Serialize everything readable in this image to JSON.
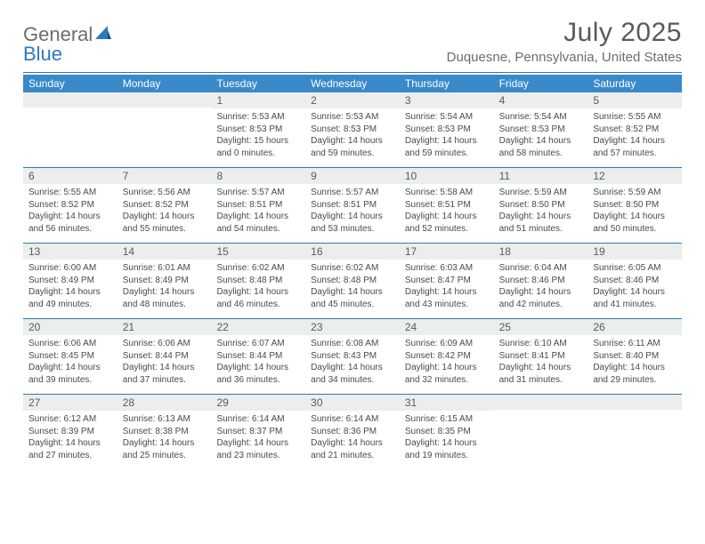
{
  "brand": {
    "part1": "General",
    "part2": "Blue"
  },
  "title": "July 2025",
  "location": "Duquesne, Pennsylvania, United States",
  "colors": {
    "headerBar": "#3a89c9",
    "rule": "#2f78bd",
    "dayNumBg": "#eceded",
    "textMuted": "#6d6d6d"
  },
  "dow": [
    "Sunday",
    "Monday",
    "Tuesday",
    "Wednesday",
    "Thursday",
    "Friday",
    "Saturday"
  ],
  "weeks": [
    [
      null,
      null,
      {
        "n": "1",
        "sr": "5:53 AM",
        "ss": "8:53 PM",
        "dl": "15 hours and 0 minutes."
      },
      {
        "n": "2",
        "sr": "5:53 AM",
        "ss": "8:53 PM",
        "dl": "14 hours and 59 minutes."
      },
      {
        "n": "3",
        "sr": "5:54 AM",
        "ss": "8:53 PM",
        "dl": "14 hours and 59 minutes."
      },
      {
        "n": "4",
        "sr": "5:54 AM",
        "ss": "8:53 PM",
        "dl": "14 hours and 58 minutes."
      },
      {
        "n": "5",
        "sr": "5:55 AM",
        "ss": "8:52 PM",
        "dl": "14 hours and 57 minutes."
      }
    ],
    [
      {
        "n": "6",
        "sr": "5:55 AM",
        "ss": "8:52 PM",
        "dl": "14 hours and 56 minutes."
      },
      {
        "n": "7",
        "sr": "5:56 AM",
        "ss": "8:52 PM",
        "dl": "14 hours and 55 minutes."
      },
      {
        "n": "8",
        "sr": "5:57 AM",
        "ss": "8:51 PM",
        "dl": "14 hours and 54 minutes."
      },
      {
        "n": "9",
        "sr": "5:57 AM",
        "ss": "8:51 PM",
        "dl": "14 hours and 53 minutes."
      },
      {
        "n": "10",
        "sr": "5:58 AM",
        "ss": "8:51 PM",
        "dl": "14 hours and 52 minutes."
      },
      {
        "n": "11",
        "sr": "5:59 AM",
        "ss": "8:50 PM",
        "dl": "14 hours and 51 minutes."
      },
      {
        "n": "12",
        "sr": "5:59 AM",
        "ss": "8:50 PM",
        "dl": "14 hours and 50 minutes."
      }
    ],
    [
      {
        "n": "13",
        "sr": "6:00 AM",
        "ss": "8:49 PM",
        "dl": "14 hours and 49 minutes."
      },
      {
        "n": "14",
        "sr": "6:01 AM",
        "ss": "8:49 PM",
        "dl": "14 hours and 48 minutes."
      },
      {
        "n": "15",
        "sr": "6:02 AM",
        "ss": "8:48 PM",
        "dl": "14 hours and 46 minutes."
      },
      {
        "n": "16",
        "sr": "6:02 AM",
        "ss": "8:48 PM",
        "dl": "14 hours and 45 minutes."
      },
      {
        "n": "17",
        "sr": "6:03 AM",
        "ss": "8:47 PM",
        "dl": "14 hours and 43 minutes."
      },
      {
        "n": "18",
        "sr": "6:04 AM",
        "ss": "8:46 PM",
        "dl": "14 hours and 42 minutes."
      },
      {
        "n": "19",
        "sr": "6:05 AM",
        "ss": "8:46 PM",
        "dl": "14 hours and 41 minutes."
      }
    ],
    [
      {
        "n": "20",
        "sr": "6:06 AM",
        "ss": "8:45 PM",
        "dl": "14 hours and 39 minutes."
      },
      {
        "n": "21",
        "sr": "6:06 AM",
        "ss": "8:44 PM",
        "dl": "14 hours and 37 minutes."
      },
      {
        "n": "22",
        "sr": "6:07 AM",
        "ss": "8:44 PM",
        "dl": "14 hours and 36 minutes."
      },
      {
        "n": "23",
        "sr": "6:08 AM",
        "ss": "8:43 PM",
        "dl": "14 hours and 34 minutes."
      },
      {
        "n": "24",
        "sr": "6:09 AM",
        "ss": "8:42 PM",
        "dl": "14 hours and 32 minutes."
      },
      {
        "n": "25",
        "sr": "6:10 AM",
        "ss": "8:41 PM",
        "dl": "14 hours and 31 minutes."
      },
      {
        "n": "26",
        "sr": "6:11 AM",
        "ss": "8:40 PM",
        "dl": "14 hours and 29 minutes."
      }
    ],
    [
      {
        "n": "27",
        "sr": "6:12 AM",
        "ss": "8:39 PM",
        "dl": "14 hours and 27 minutes."
      },
      {
        "n": "28",
        "sr": "6:13 AM",
        "ss": "8:38 PM",
        "dl": "14 hours and 25 minutes."
      },
      {
        "n": "29",
        "sr": "6:14 AM",
        "ss": "8:37 PM",
        "dl": "14 hours and 23 minutes."
      },
      {
        "n": "30",
        "sr": "6:14 AM",
        "ss": "8:36 PM",
        "dl": "14 hours and 21 minutes."
      },
      {
        "n": "31",
        "sr": "6:15 AM",
        "ss": "8:35 PM",
        "dl": "14 hours and 19 minutes."
      },
      null,
      null
    ]
  ],
  "labels": {
    "sunrise": "Sunrise:",
    "sunset": "Sunset:",
    "daylight": "Daylight:"
  }
}
